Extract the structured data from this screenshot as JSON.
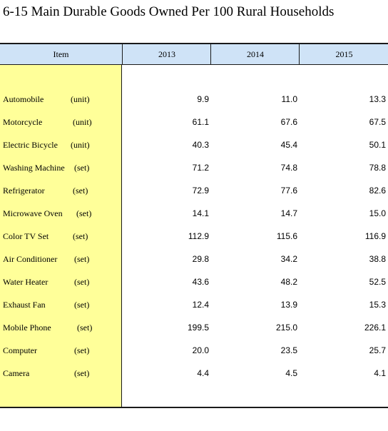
{
  "title": "6-15  Main Durable Goods Owned Per 100 Rural Households",
  "headers": {
    "item": "Item",
    "years": [
      "2013",
      "2014",
      "2015"
    ]
  },
  "rows": [
    {
      "name": "Automobile",
      "unit": "(unit)",
      "values": [
        "9.9",
        "11.0",
        "13.3"
      ]
    },
    {
      "name": "Motorcycle",
      "unit": "(unit)",
      "values": [
        "61.1",
        "67.6",
        "67.5"
      ]
    },
    {
      "name": "Electric Bicycle",
      "unit": "(unit)",
      "values": [
        "40.3",
        "45.4",
        "50.1"
      ]
    },
    {
      "name": "Washing Machine",
      "unit": "(set)",
      "values": [
        "71.2",
        "74.8",
        "78.8"
      ]
    },
    {
      "name": "Refrigerator",
      "unit": "(set)",
      "values": [
        "72.9",
        "77.6",
        "82.6"
      ]
    },
    {
      "name": "Microwave Oven",
      "unit": "(set)",
      "values": [
        "14.1",
        "14.7",
        "15.0"
      ]
    },
    {
      "name": "Color TV Set",
      "unit": "(set)",
      "values": [
        "112.9",
        "115.6",
        "116.9"
      ]
    },
    {
      "name": "Air Conditioner",
      "unit": "(set)",
      "values": [
        "29.8",
        "34.2",
        "38.8"
      ]
    },
    {
      "name": "Water Heater",
      "unit": "(set)",
      "values": [
        "43.6",
        "48.2",
        "52.5"
      ]
    },
    {
      "name": "Exhaust Fan",
      "unit": "(set)",
      "values": [
        "12.4",
        "13.9",
        "15.3"
      ]
    },
    {
      "name": "Mobile Phone",
      "unit": "(set)",
      "values": [
        "199.5",
        "215.0",
        "226.1"
      ]
    },
    {
      "name": "Computer",
      "unit": "(set)",
      "values": [
        "20.0",
        "23.5",
        "25.7"
      ]
    },
    {
      "name": "Camera",
      "unit": "(set)",
      "values": [
        "4.4",
        "4.5",
        "4.1"
      ]
    }
  ]
}
